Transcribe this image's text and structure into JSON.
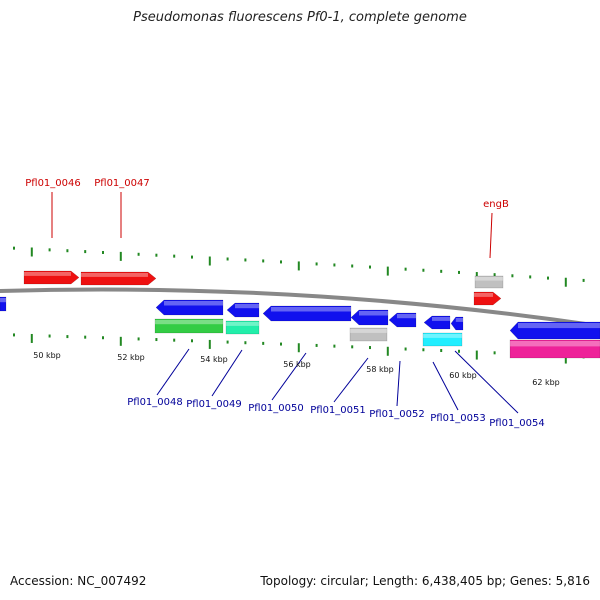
{
  "title": "Pseudomonas fluorescens Pf0-1, complete genome",
  "footer": {
    "accession": "Accession: NC_007492",
    "summary": "Topology: circular; Length: 6,438,405 bp; Genes: 5,816"
  },
  "colors": {
    "backbone": "#888888",
    "forward_gene": "#ee1111",
    "reverse_gene": "#1111ee",
    "grey_feature": "#c0c0c0",
    "green_feature": "#33cc44",
    "teal_feature": "#22eeaa",
    "cyan_feature": "#22eeff",
    "magenta_feature": "#ee2299",
    "tick": "#228822",
    "top_label": "#cc0000",
    "bottom_label": "#000099"
  },
  "scale_labels": [
    "50 kbp",
    "52 kbp",
    "54 kbp",
    "56 kbp",
    "58 kbp",
    "60 kbp",
    "62 kbp"
  ],
  "top_labels": [
    "Pfl01_0046",
    "Pfl01_0047",
    "engB"
  ],
  "bottom_labels": [
    "Pfl01_0048",
    "Pfl01_0049",
    "Pfl01_0050",
    "Pfl01_0051",
    "Pfl01_0052",
    "Pfl01_0053",
    "Pfl01_0054"
  ]
}
